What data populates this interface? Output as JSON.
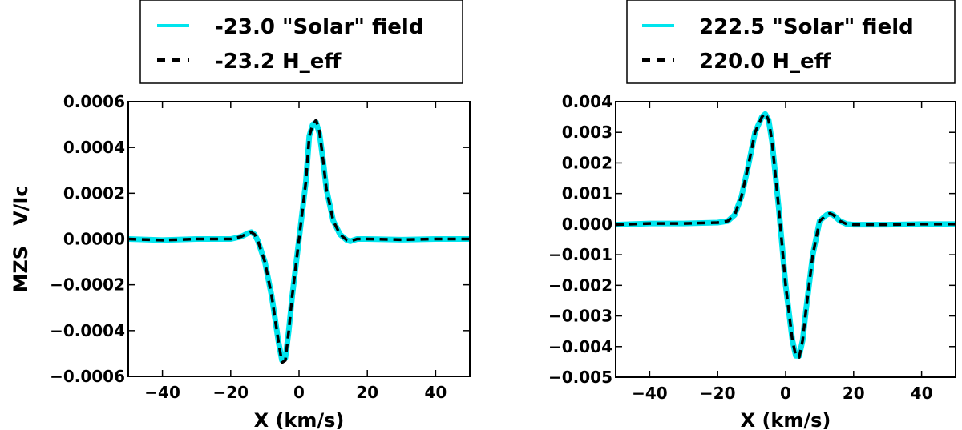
{
  "chart_data": [
    {
      "type": "line",
      "title": "",
      "xlabel": "X (km/s)",
      "ylabel": "MZS   V/Ic",
      "xlim": [
        -50,
        50
      ],
      "ylim": [
        -0.0006,
        0.0006
      ],
      "xticks": [
        -40,
        -20,
        0,
        20,
        40
      ],
      "xtick_labels": [
        "−40",
        "−20",
        "0",
        "20",
        "40"
      ],
      "yticks": [
        -0.0006,
        -0.0004,
        -0.0002,
        0.0,
        0.0002,
        0.0004,
        0.0006
      ],
      "ytick_labels": [
        "−0.0006",
        "−0.0004",
        "−0.0002",
        "0.0000",
        "0.0002",
        "0.0004",
        "0.0006"
      ],
      "legend_location": "top (above plot)",
      "series": [
        {
          "name": "-23.0 \"Solar\" field",
          "color": "#00e5ee",
          "style": "solid",
          "x": [
            -50,
            -40,
            -30,
            -20,
            -17,
            -15,
            -14,
            -13,
            -12,
            -10,
            -8,
            -6,
            -5,
            -4,
            -3,
            -2,
            0,
            2,
            3,
            4,
            5,
            6,
            7,
            8,
            10,
            12,
            14,
            15,
            17,
            20,
            30,
            40,
            50
          ],
          "y": [
            0.0,
            -5e-06,
            0.0,
            0.0,
            1e-05,
            2.5e-05,
            3e-05,
            2e-05,
            -1e-05,
            -0.0001,
            -0.00025,
            -0.00045,
            -0.00053,
            -0.00052,
            -0.0004,
            -0.00025,
            0.0,
            0.00025,
            0.00045,
            0.0005,
            0.00051,
            0.00046,
            0.00035,
            0.00022,
            8e-05,
            2e-05,
            -5e-06,
            -1e-05,
            0.0,
            0.0,
            -3e-06,
            0.0,
            0.0
          ]
        },
        {
          "name": "-23.2 H_eff",
          "color": "#000000",
          "style": "dashed",
          "x": [
            -50,
            -40,
            -30,
            -20,
            -17,
            -15,
            -14,
            -13,
            -12,
            -10,
            -8,
            -6,
            -5,
            -4,
            -3,
            -2,
            0,
            2,
            3,
            4,
            5,
            6,
            7,
            8,
            10,
            12,
            14,
            15,
            17,
            20,
            30,
            40,
            50
          ],
          "y": [
            0.0,
            -5e-06,
            0.0,
            0.0,
            1e-05,
            2.5e-05,
            3e-05,
            2e-05,
            -1e-05,
            -0.0001,
            -0.00025,
            -0.00045,
            -0.00054,
            -0.00053,
            -0.0004,
            -0.00025,
            0.0,
            0.00025,
            0.00045,
            0.0005,
            0.00052,
            0.00047,
            0.00035,
            0.00022,
            8e-05,
            2e-05,
            -5e-06,
            -1e-05,
            0.0,
            0.0,
            -3e-06,
            0.0,
            0.0
          ]
        }
      ]
    },
    {
      "type": "line",
      "title": "",
      "xlabel": "X (km/s)",
      "ylabel": "",
      "xlim": [
        -50,
        50
      ],
      "ylim": [
        -0.005,
        0.004
      ],
      "xticks": [
        -40,
        -20,
        0,
        20,
        40
      ],
      "xtick_labels": [
        "−40",
        "−20",
        "0",
        "20",
        "40"
      ],
      "yticks": [
        -0.005,
        -0.004,
        -0.003,
        -0.002,
        -0.001,
        0.0,
        0.001,
        0.002,
        0.003,
        0.004
      ],
      "ytick_labels": [
        "−0.005",
        "−0.004",
        "−0.003",
        "−0.002",
        "−0.001",
        "0.000",
        "0.001",
        "0.002",
        "0.003",
        "0.004"
      ],
      "legend_location": "top (above plot)",
      "series": [
        {
          "name": "222.5 \"Solar\" field",
          "color": "#00e5ee",
          "style": "solid",
          "x": [
            -50,
            -40,
            -30,
            -20,
            -17,
            -15,
            -13,
            -11,
            -9,
            -7,
            -6,
            -5,
            -4,
            -2,
            0,
            2,
            3,
            4,
            5,
            6,
            8,
            10,
            12,
            13,
            14,
            16,
            18,
            20,
            30,
            40,
            50
          ],
          "y": [
            -2e-05,
            2e-05,
            2e-05,
            5e-05,
            0.0001,
            0.0003,
            0.0009,
            0.0019,
            0.003,
            0.0035,
            0.0036,
            0.0034,
            0.0027,
            0.0005,
            -0.002,
            -0.0038,
            -0.0043,
            -0.0043,
            -0.0038,
            -0.0028,
            -0.001,
            0.0001,
            0.0003,
            0.00035,
            0.0003,
            0.0001,
            0.0,
            -2e-05,
            -2e-05,
            0.0,
            0.0
          ]
        },
        {
          "name": "220.0 H_eff",
          "color": "#000000",
          "style": "dashed",
          "x": [
            -50,
            -40,
            -30,
            -20,
            -17,
            -15,
            -13,
            -11,
            -9,
            -7,
            -6,
            -5,
            -4,
            -2,
            0,
            2,
            3,
            4,
            5,
            6,
            8,
            10,
            12,
            13,
            14,
            16,
            18,
            20,
            30,
            40,
            50
          ],
          "y": [
            -2e-05,
            2e-05,
            2e-05,
            5e-05,
            0.0001,
            0.0003,
            0.0009,
            0.0019,
            0.003,
            0.0035,
            0.00362,
            0.0034,
            0.0027,
            0.0005,
            -0.002,
            -0.0038,
            -0.0043,
            -0.00435,
            -0.0038,
            -0.0028,
            -0.001,
            0.0001,
            0.0003,
            0.00035,
            0.0003,
            0.0001,
            0.0,
            -2e-05,
            -2e-05,
            0.0,
            0.0
          ]
        }
      ]
    }
  ]
}
